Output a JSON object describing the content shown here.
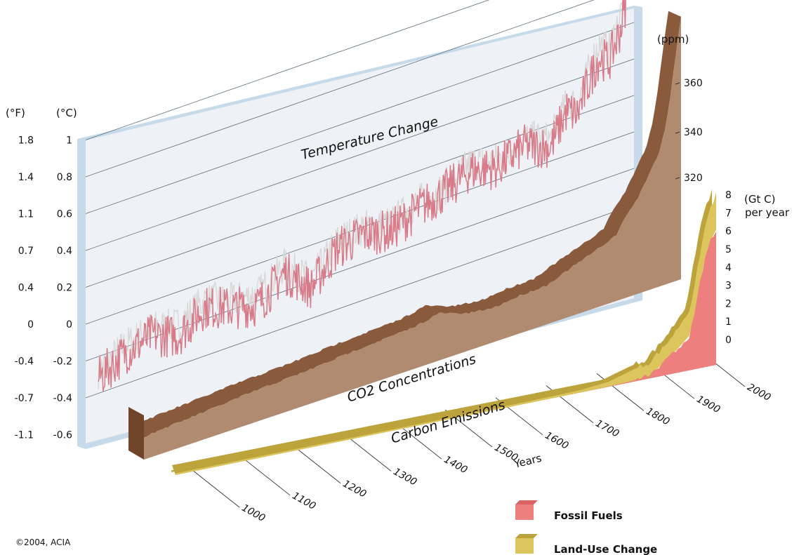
{
  "copyright": "©2004, ACIA",
  "colors": {
    "panel_frame": "#c6daea",
    "panel_fill": "#eef2f7",
    "gridline": "#5c6b7a",
    "temp_line": "#d87a88",
    "temp_line_alt": "#d9d6d6",
    "co2_top": "#8a5a3c",
    "co2_front": "#b08b70",
    "co2_dark": "#6f4429",
    "fossil": "#ee7f7f",
    "land_use": "#dcc55c",
    "land_use_dark": "#bca33b"
  },
  "chart_data": {
    "type": "area",
    "panels": {
      "temperature": {
        "title": "Temperature Change",
        "unit_f": "(°F)",
        "unit_c": "(°C)",
        "ticks_f": [
          "1.8",
          "1.4",
          "1.1",
          "0.7",
          "0.4",
          "0",
          "-0.4",
          "-0.7",
          "-1.1"
        ],
        "ticks_c": [
          "1",
          "0.8",
          "0.6",
          "0.4",
          "0.2",
          "0",
          "-0.2",
          "-0.4",
          "-0.6"
        ],
        "ylim_c": [
          -0.6,
          1.0
        ],
        "x": [
          1000,
          1050,
          1100,
          1150,
          1200,
          1250,
          1300,
          1350,
          1400,
          1450,
          1500,
          1550,
          1600,
          1650,
          1700,
          1750,
          1800,
          1850,
          1880,
          1900,
          1920,
          1940,
          1960,
          1980,
          1990,
          2000
        ],
        "series": [
          {
            "values": [
              -0.18,
              -0.1,
              -0.06,
              -0.12,
              -0.02,
              -0.08,
              -0.12,
              0.0,
              -0.14,
              0.02,
              0.04,
              0.0,
              0.06,
              0.1,
              0.16,
              0.12,
              0.18,
              0.12,
              0.28,
              0.24,
              0.38,
              0.5,
              0.46,
              0.6,
              0.72,
              0.98
            ]
          },
          {
            "values": [
              -0.14,
              -0.06,
              -0.02,
              -0.06,
              0.02,
              -0.04,
              -0.06,
              0.04,
              -0.1,
              0.06,
              0.08,
              0.04,
              0.1,
              0.12,
              0.2,
              0.16,
              0.22,
              0.16,
              0.32,
              0.3,
              0.44,
              0.58,
              0.52,
              0.68,
              0.8,
              1.0
            ]
          }
        ]
      },
      "co2": {
        "title": "CO2 Concentrations",
        "unit": "(ppm)",
        "ticks": [
          "320",
          "340",
          "360"
        ],
        "x": [
          1000,
          1100,
          1200,
          1300,
          1400,
          1500,
          1550,
          1600,
          1650,
          1700,
          1750,
          1800,
          1850,
          1880,
          1900,
          1920,
          1940,
          1960,
          1970,
          1980,
          1990,
          2000
        ],
        "values": [
          279,
          280,
          281,
          281,
          282,
          282,
          284,
          279,
          277,
          278,
          278,
          282,
          286,
          289,
          296,
          301,
          309,
          317,
          325,
          338,
          354,
          369
        ]
      },
      "emissions": {
        "title": "Carbon Emissions",
        "unit": "(Gt C)",
        "unit_sub": "per year",
        "ticks": [
          "0",
          "1",
          "2",
          "3",
          "4",
          "5",
          "6",
          "7",
          "8"
        ],
        "ylim": [
          0,
          8
        ],
        "x": [
          1000,
          1200,
          1400,
          1600,
          1700,
          1750,
          1800,
          1850,
          1875,
          1900,
          1925,
          1950,
          1960,
          1970,
          1980,
          1990,
          2000
        ],
        "series": [
          {
            "name": "Fossil Fuels",
            "values": [
              0,
              0,
              0,
              0,
              0,
              0,
              0.01,
              0.05,
              0.1,
              0.5,
              1.0,
              1.6,
              2.5,
              4.0,
              5.2,
              6.0,
              6.5
            ]
          },
          {
            "name": "Land-Use Change",
            "values": [
              0.05,
              0.05,
              0.05,
              0.06,
              0.08,
              0.1,
              0.2,
              0.5,
              0.6,
              0.7,
              0.9,
              1.2,
              1.3,
              1.4,
              1.5,
              1.6,
              1.7
            ]
          }
        ]
      }
    },
    "x_axis": {
      "label": "Years",
      "ticks": [
        "1000",
        "1100",
        "1200",
        "1300",
        "1400",
        "1500",
        "1600",
        "1700",
        "1800",
        "1900",
        "2000"
      ]
    },
    "legend": {
      "position": "bottom-right",
      "items": [
        "Fossil Fuels",
        "Land-Use Change"
      ]
    }
  }
}
